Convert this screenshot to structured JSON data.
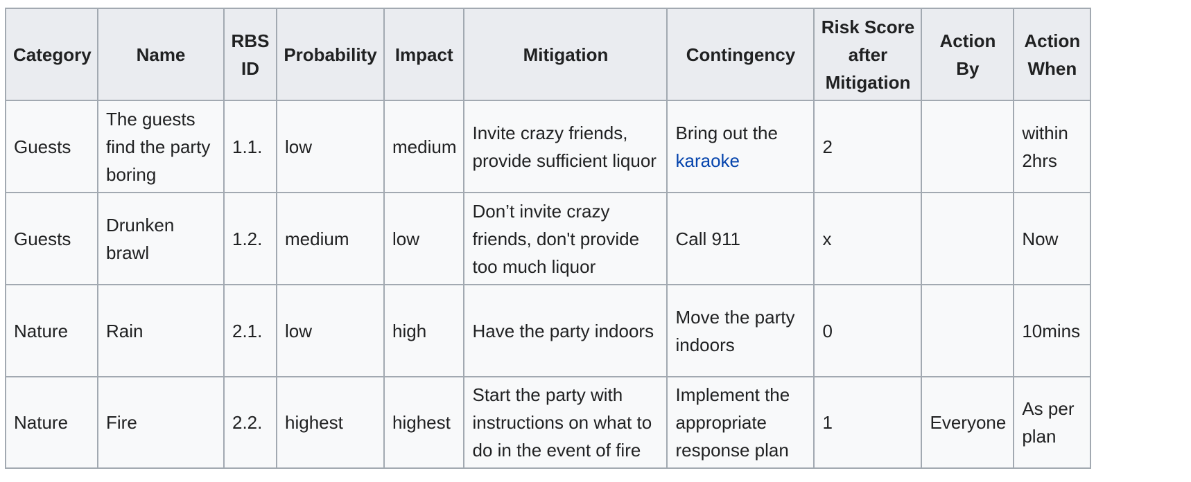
{
  "table": {
    "headers": {
      "category": "Category",
      "name": "Name",
      "rbs_id": "RBS ID",
      "probability": "Probability",
      "impact": "Impact",
      "mitigation": "Mitigation",
      "contingency": "Contingency",
      "risk_score": "Risk Score after Mitigation",
      "action_by": "Action By",
      "action_when": "Action When"
    },
    "rows": [
      {
        "category": "Guests",
        "name": "The guests find the party boring",
        "rbs_id": "1.1.",
        "probability": "low",
        "impact": "medium",
        "mitigation": "Invite crazy friends, provide sufficient liquor",
        "contingency_prefix": "Bring out the",
        "contingency_link": "karaoke",
        "risk_score": "2",
        "action_by": "",
        "action_when": "within 2hrs"
      },
      {
        "category": "Guests",
        "name": "Drunken brawl",
        "rbs_id": "1.2.",
        "probability": "medium",
        "impact": "low",
        "mitigation": "Don’t invite crazy friends, don't provide too much liquor",
        "contingency": "Call 911",
        "risk_score": "x",
        "action_by": "",
        "action_when": "Now"
      },
      {
        "category": "Nature",
        "name": "Rain",
        "rbs_id": "2.1.",
        "probability": "low",
        "impact": "high",
        "mitigation": "Have the party indoors",
        "contingency": "Move the party indoors",
        "risk_score": "0",
        "action_by": "",
        "action_when": "10mins"
      },
      {
        "category": "Nature",
        "name": "Fire",
        "rbs_id": "2.2.",
        "probability": "highest",
        "impact": "highest",
        "mitigation": "Start the party with instructions on what to do in the event of fire",
        "contingency": "Implement the appropriate response plan",
        "risk_score": "1",
        "action_by": "Everyone",
        "action_when": "As per plan"
      }
    ]
  }
}
